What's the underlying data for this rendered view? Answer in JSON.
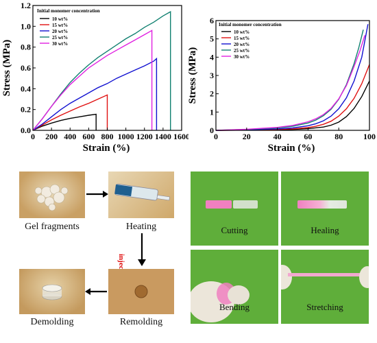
{
  "colors": {
    "10 wt%": "#000000",
    "15 wt%": "#e01010",
    "20 wt%": "#1010d0",
    "25 wt%": "#108070",
    "30 wt%": "#e020e0",
    "green_bg": "#5fae3a",
    "tan_bg": "#c9a064",
    "sample_pink": "#f080c0"
  },
  "chart_data": [
    {
      "type": "line",
      "xlabel": "Strain (%)",
      "ylabel": "Stress (MPa)",
      "xlim": [
        0,
        1600
      ],
      "ylim": [
        0.0,
        1.2
      ],
      "xticks": [
        0,
        200,
        400,
        600,
        800,
        1000,
        1200,
        1400,
        1600
      ],
      "yticks": [
        0.0,
        0.2,
        0.4,
        0.6,
        0.8,
        1.0,
        1.2
      ],
      "ytick_labels": [
        "0.0",
        "0.2",
        "0.4",
        "0.6",
        "0.8",
        "1.0",
        "1.2"
      ],
      "legend_title": "Initial monomer concentration",
      "legend_position": "top-left",
      "series": [
        {
          "name": "10 wt%",
          "x": [
            0,
            100,
            200,
            300,
            400,
            500,
            600,
            680,
            680
          ],
          "y": [
            0,
            0.04,
            0.07,
            0.095,
            0.115,
            0.13,
            0.145,
            0.155,
            0
          ]
        },
        {
          "name": "15 wt%",
          "x": [
            0,
            100,
            200,
            300,
            400,
            500,
            600,
            700,
            800,
            800
          ],
          "y": [
            0,
            0.05,
            0.1,
            0.145,
            0.185,
            0.225,
            0.26,
            0.3,
            0.34,
            0
          ]
        },
        {
          "name": "20 wt%",
          "x": [
            0,
            100,
            200,
            300,
            400,
            500,
            600,
            700,
            800,
            900,
            1000,
            1100,
            1200,
            1300,
            1330,
            1330
          ],
          "y": [
            0,
            0.06,
            0.13,
            0.2,
            0.26,
            0.31,
            0.36,
            0.41,
            0.45,
            0.5,
            0.54,
            0.58,
            0.62,
            0.665,
            0.69,
            0
          ]
        },
        {
          "name": "25 wt%",
          "x": [
            0,
            100,
            200,
            300,
            400,
            500,
            600,
            700,
            800,
            900,
            1000,
            1100,
            1200,
            1300,
            1400,
            1480,
            1480
          ],
          "y": [
            0,
            0.11,
            0.23,
            0.35,
            0.46,
            0.55,
            0.63,
            0.7,
            0.76,
            0.82,
            0.88,
            0.93,
            0.99,
            1.04,
            1.1,
            1.14,
            0
          ]
        },
        {
          "name": "30 wt%",
          "x": [
            0,
            100,
            200,
            300,
            400,
            500,
            600,
            700,
            800,
            900,
            1000,
            1100,
            1200,
            1280,
            1280
          ],
          "y": [
            0,
            0.11,
            0.23,
            0.34,
            0.44,
            0.52,
            0.6,
            0.66,
            0.72,
            0.77,
            0.82,
            0.87,
            0.92,
            0.96,
            0
          ]
        }
      ]
    },
    {
      "type": "line",
      "xlabel": "Strain (%)",
      "ylabel": "Stress (MPa)",
      "xlim": [
        0,
        100
      ],
      "ylim": [
        0,
        6
      ],
      "xticks": [
        0,
        20,
        40,
        60,
        80,
        100
      ],
      "yticks": [
        0,
        1,
        2,
        3,
        4,
        5,
        6
      ],
      "ytick_labels": [
        "0",
        "1",
        "2",
        "3",
        "4",
        "5",
        "6"
      ],
      "legend_title": "Initial monomer concentration",
      "legend_position": "top-left",
      "series": [
        {
          "name": "10 wt%",
          "x": [
            0,
            20,
            40,
            50,
            60,
            70,
            75,
            80,
            85,
            90,
            95,
            100
          ],
          "y": [
            0,
            0.01,
            0.03,
            0.05,
            0.09,
            0.18,
            0.28,
            0.45,
            0.75,
            1.2,
            1.85,
            2.7
          ]
        },
        {
          "name": "15 wt%",
          "x": [
            0,
            20,
            40,
            50,
            60,
            65,
            70,
            75,
            80,
            85,
            90,
            95,
            100
          ],
          "y": [
            0,
            0.02,
            0.05,
            0.08,
            0.15,
            0.22,
            0.33,
            0.5,
            0.78,
            1.18,
            1.75,
            2.55,
            3.6
          ]
        },
        {
          "name": "20 wt%",
          "x": [
            0,
            20,
            40,
            50,
            60,
            65,
            70,
            75,
            80,
            85,
            90,
            95,
            99
          ],
          "y": [
            0,
            0.03,
            0.08,
            0.13,
            0.25,
            0.36,
            0.52,
            0.78,
            1.18,
            1.78,
            2.7,
            4.0,
            5.8
          ]
        },
        {
          "name": "25 wt%",
          "x": [
            0,
            20,
            40,
            50,
            60,
            65,
            70,
            75,
            80,
            85,
            90,
            93,
            96
          ],
          "y": [
            0,
            0.05,
            0.13,
            0.22,
            0.4,
            0.56,
            0.8,
            1.15,
            1.7,
            2.5,
            3.65,
            4.5,
            5.5
          ]
        },
        {
          "name": "30 wt%",
          "x": [
            0,
            20,
            40,
            50,
            60,
            65,
            70,
            75,
            80,
            85,
            90,
            94,
            97
          ],
          "y": [
            0,
            0.06,
            0.16,
            0.27,
            0.47,
            0.63,
            0.86,
            1.2,
            1.72,
            2.45,
            3.5,
            4.4,
            5.2
          ]
        }
      ]
    }
  ],
  "photos": {
    "gel_fragments": "Gel fragments",
    "heating": "Heating",
    "injecting": "injecting",
    "remolding": "Remolding",
    "demolding": "Demolding",
    "cutting": "Cutting",
    "healing": "Healing",
    "bending": "Bending",
    "stretching": "Stretching"
  }
}
